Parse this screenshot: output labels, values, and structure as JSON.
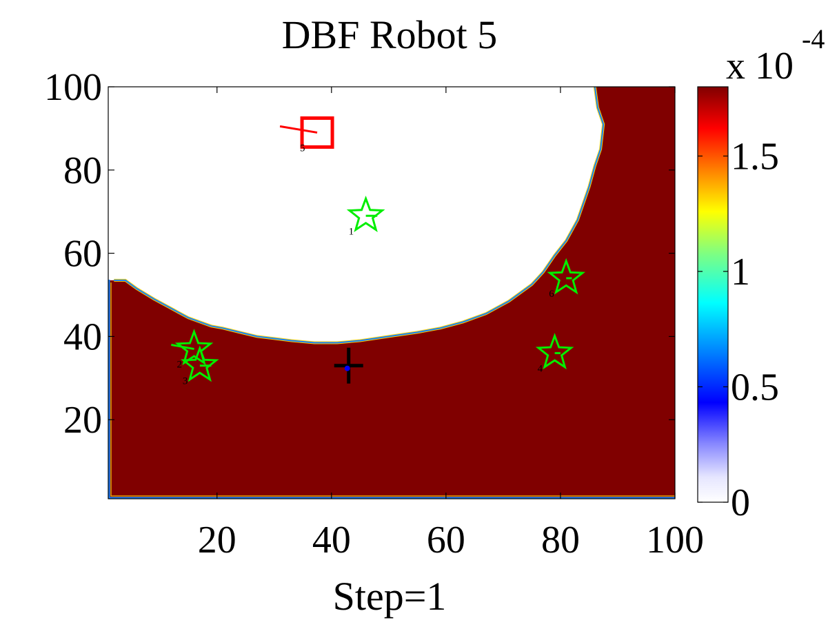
{
  "chart_data": {
    "type": "heatmap",
    "title": "DBF Robot 5",
    "xlabel": "Step=1",
    "ylabel": "",
    "xlim": [
      1,
      100
    ],
    "ylim": [
      1,
      100
    ],
    "xticks": [
      20,
      40,
      60,
      80,
      100
    ],
    "yticks": [
      20,
      40,
      60,
      80,
      100
    ],
    "colormap": "jet",
    "colorbar": {
      "exponent_label": "x 10",
      "exponent_value": "-4",
      "clim": [
        0,
        1.8
      ],
      "ticks": [
        "0",
        "0.5",
        "1",
        "1.5"
      ],
      "tick_values": [
        0,
        0.5,
        1,
        1.5
      ]
    },
    "field": {
      "low_value": 0,
      "high_value": 1.8,
      "low_region_boundary": [
        [
          2,
          53.5
        ],
        [
          4,
          53.5
        ],
        [
          6,
          51.5
        ],
        [
          9,
          49
        ],
        [
          11,
          47.5
        ],
        [
          13,
          46
        ],
        [
          15,
          44.5
        ],
        [
          17,
          43.5
        ],
        [
          19,
          42.5
        ],
        [
          21,
          42
        ],
        [
          24,
          41
        ],
        [
          27,
          40
        ],
        [
          30,
          39.5
        ],
        [
          33,
          39
        ],
        [
          37,
          38.5
        ],
        [
          41,
          38.5
        ],
        [
          45,
          39
        ],
        [
          50,
          40
        ],
        [
          55,
          41
        ],
        [
          59,
          42
        ],
        [
          63,
          43.5
        ],
        [
          67,
          45.5
        ],
        [
          71,
          48.5
        ],
        [
          75,
          52.5
        ],
        [
          77,
          55.5
        ],
        [
          79,
          59.5
        ],
        [
          81,
          63
        ],
        [
          83,
          68
        ],
        [
          84,
          72
        ],
        [
          85,
          76
        ],
        [
          86,
          81
        ],
        [
          87,
          85
        ],
        [
          87.5,
          91
        ],
        [
          86.5,
          95
        ],
        [
          86,
          100
        ]
      ],
      "high_color": "#800000",
      "low_color": "#ffffff"
    },
    "robots": [
      {
        "id": "1",
        "x": 46,
        "y": 69,
        "marker": "star",
        "color": "#00ee00"
      },
      {
        "id": "2",
        "x": 16,
        "y": 37,
        "marker": "star",
        "color": "#00ee00"
      },
      {
        "id": "3",
        "x": 17,
        "y": 33,
        "marker": "star",
        "color": "#00ee00"
      },
      {
        "id": "4",
        "x": 79,
        "y": 36,
        "marker": "star",
        "color": "#00ee00"
      },
      {
        "id": "5",
        "x": 37.5,
        "y": 89,
        "marker": "square",
        "color": "#ff0000"
      },
      {
        "id": "6",
        "x": 81,
        "y": 54,
        "marker": "star",
        "color": "#00ee00"
      }
    ],
    "robot_headings": [
      {
        "id": "5",
        "from": [
          37.5,
          89
        ],
        "to": [
          31,
          90.5
        ],
        "color": "#ff0000"
      },
      {
        "id": "1",
        "from": [
          46,
          69
        ],
        "to": [
          48,
          69
        ],
        "color": "#00ee00"
      },
      {
        "id": "2",
        "from": [
          16,
          37
        ],
        "to": [
          12,
          38
        ],
        "color": "#00ee00"
      },
      {
        "id": "3",
        "from": [
          17,
          33
        ],
        "to": [
          19,
          33
        ],
        "color": "#00ee00"
      },
      {
        "id": "4",
        "from": [
          79,
          36
        ],
        "to": [
          80,
          36
        ],
        "color": "#00ee00"
      },
      {
        "id": "6",
        "from": [
          81,
          54
        ],
        "to": [
          82,
          54
        ],
        "color": "#00ee00"
      }
    ],
    "target": {
      "x": 43,
      "y": 33,
      "marker": "plus",
      "color": "#000000"
    },
    "estimate": {
      "x": 43,
      "y": 33,
      "marker": "dot",
      "color": "#0000ff"
    }
  }
}
